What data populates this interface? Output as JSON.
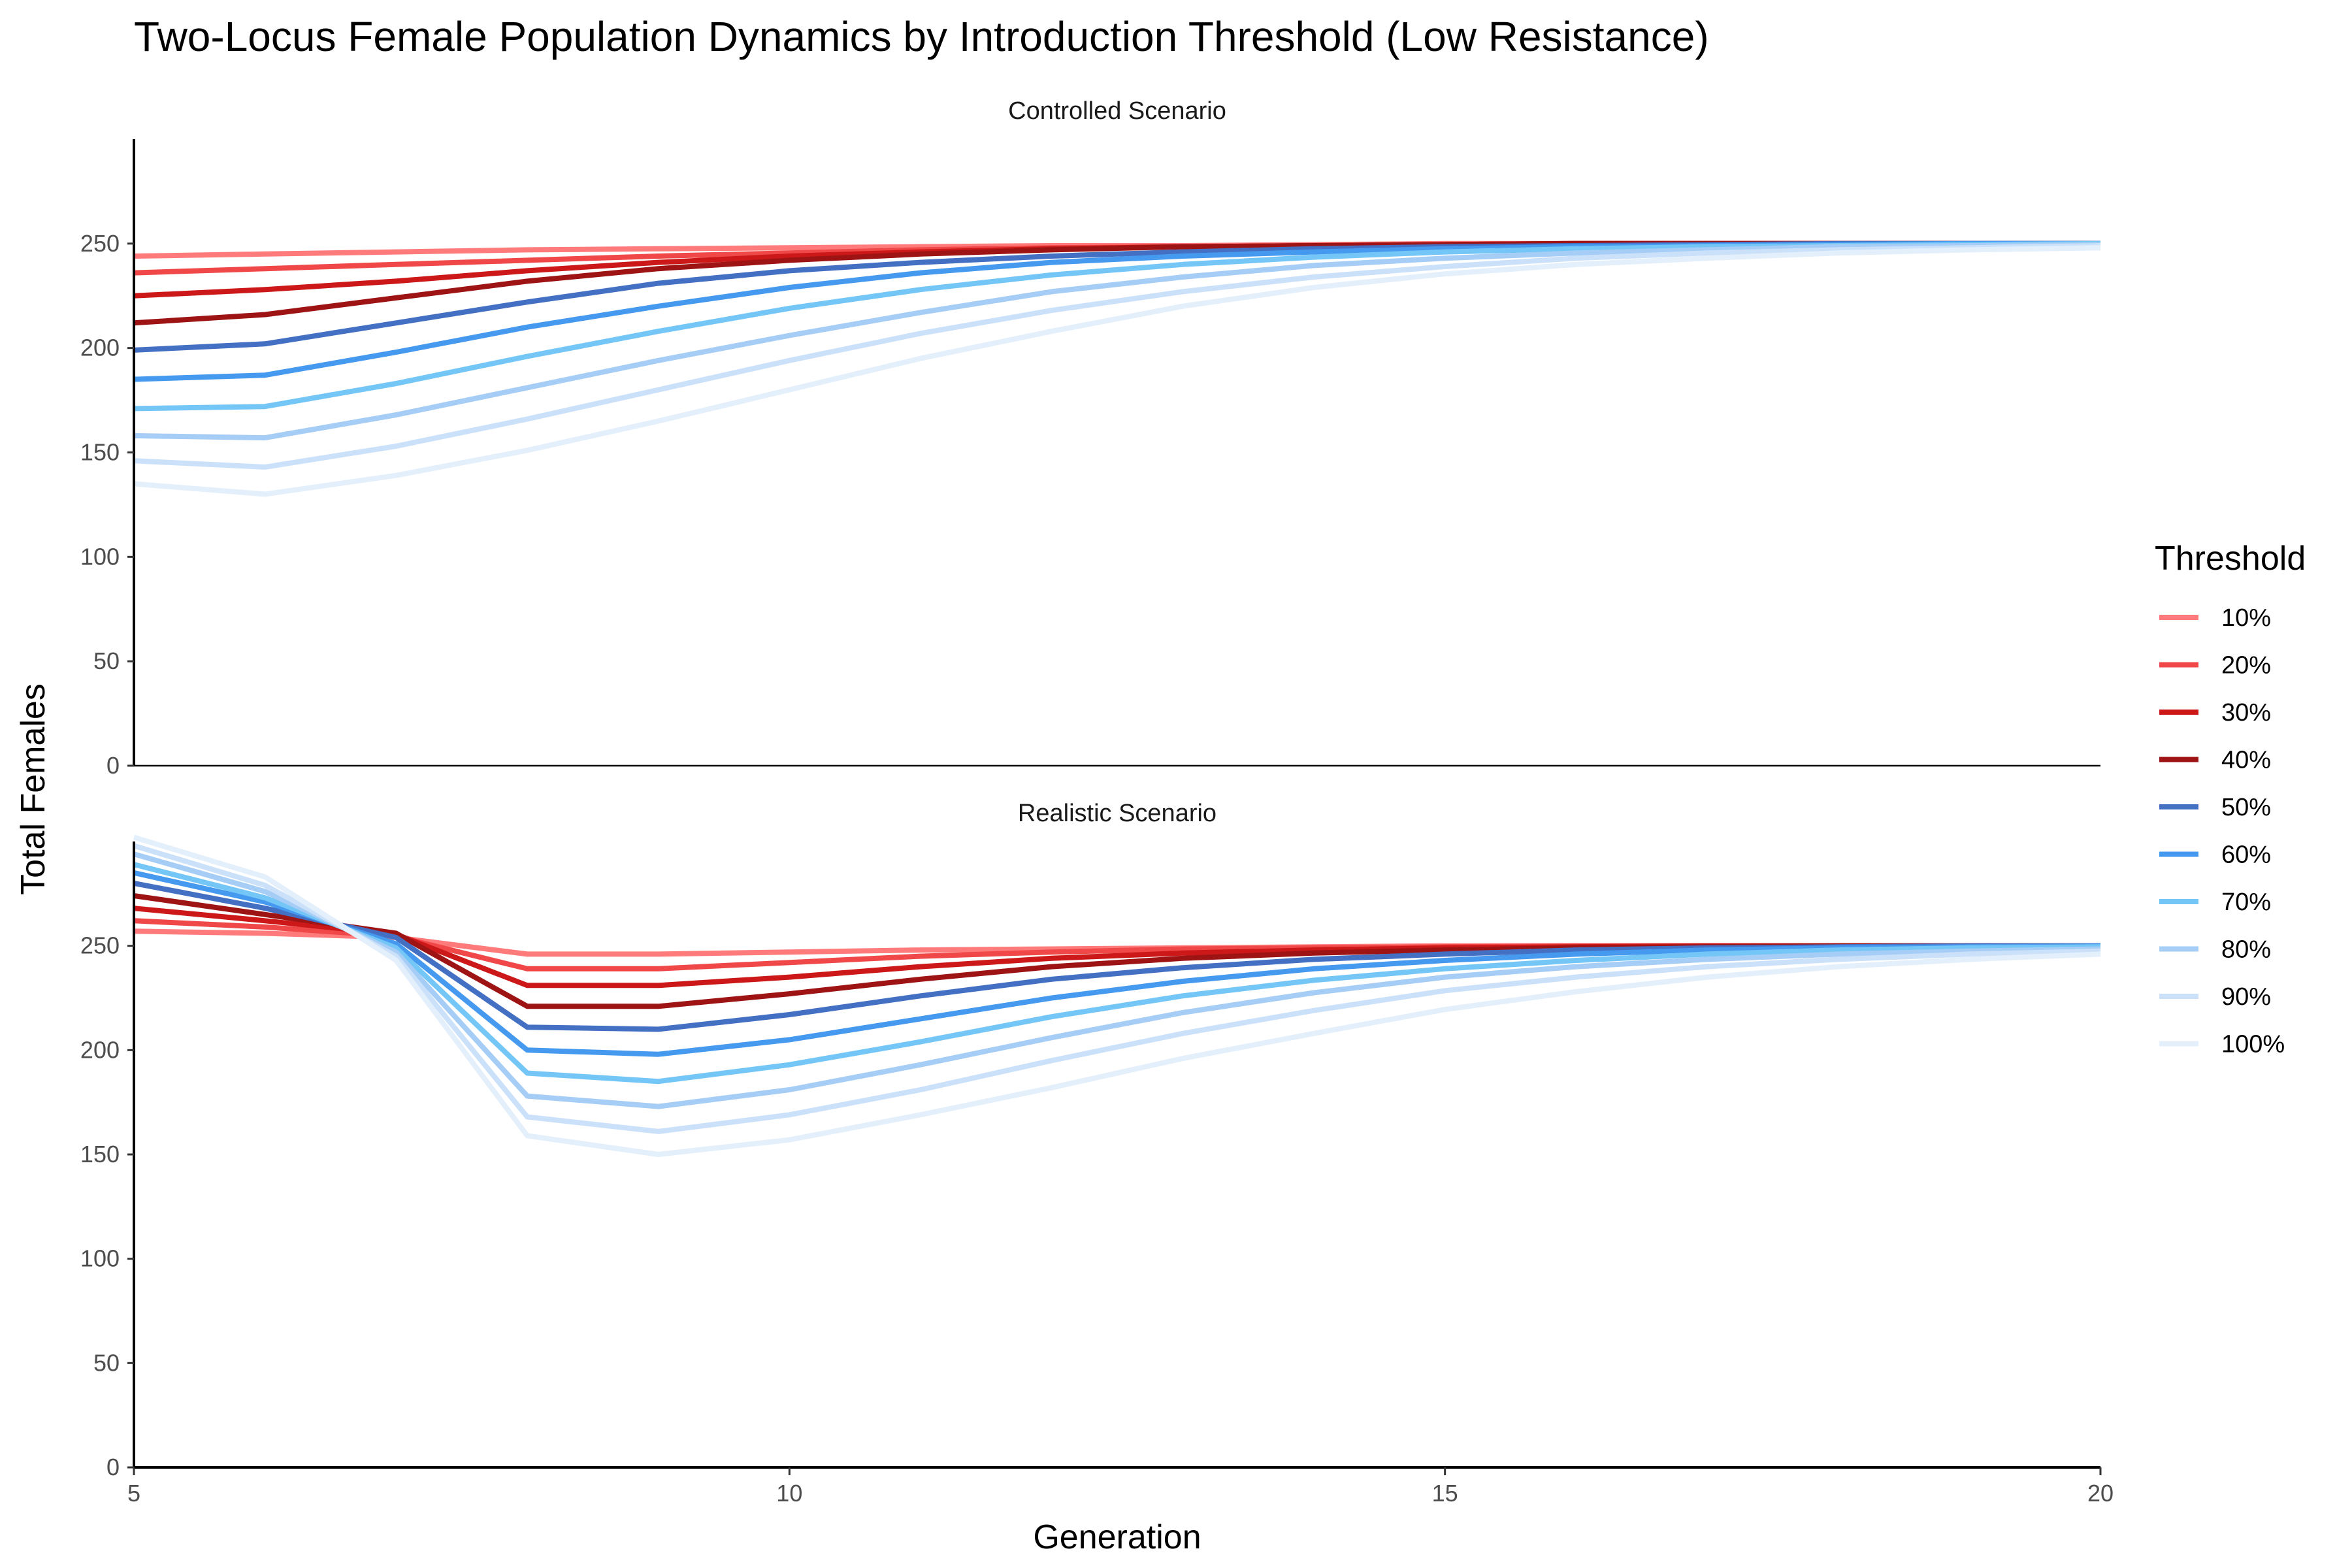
{
  "chart_data": {
    "type": "line",
    "title": "Two-Locus Female Population Dynamics by Introduction Threshold (Low Resistance)",
    "xlabel": "Generation",
    "ylabel": "Total Females",
    "xlim": [
      5,
      20
    ],
    "ylim": [
      0,
      300
    ],
    "x_ticks": [
      5,
      10,
      15,
      20
    ],
    "y_ticks": [
      0,
      50,
      100,
      150,
      200,
      250
    ],
    "legend": {
      "title": "Threshold",
      "placement": "right"
    },
    "x": [
      5,
      6,
      7,
      8,
      9,
      10,
      11,
      12,
      13,
      14,
      15,
      16,
      17,
      18,
      19,
      20
    ],
    "panels": [
      {
        "name": "Controlled Scenario",
        "series": [
          {
            "name": "10%",
            "color": "#ff7b7b",
            "values": [
              244,
              245,
              246,
              247,
              247.5,
              248,
              248.5,
              249,
              249,
              249.5,
              250,
              250,
              250,
              250,
              250,
              250
            ]
          },
          {
            "name": "20%",
            "color": "#f04848",
            "values": [
              236,
              238,
              240,
              242,
              244,
              245.5,
              247,
              248,
              248.5,
              249,
              249.5,
              250,
              250,
              250,
              250,
              250
            ]
          },
          {
            "name": "30%",
            "color": "#cc1818",
            "values": [
              225,
              228,
              232,
              237,
              241,
              244,
              246,
              247.5,
              248.5,
              249,
              249.5,
              250,
              250,
              250,
              250,
              250
            ]
          },
          {
            "name": "40%",
            "color": "#9e1414",
            "values": [
              212,
              216,
              224,
              232,
              238,
              242,
              245,
              247,
              248.5,
              249,
              249.5,
              250,
              250,
              250,
              250,
              250
            ]
          },
          {
            "name": "50%",
            "color": "#4470c4",
            "values": [
              199,
              202,
              212,
              222,
              231,
              237,
              241,
              244,
              246,
              247.5,
              248.5,
              249,
              249.5,
              250,
              250,
              250
            ]
          },
          {
            "name": "60%",
            "color": "#4599ee",
            "values": [
              185,
              187,
              198,
              210,
              220,
              229,
              236,
              241,
              244,
              246,
              247.5,
              248.5,
              249,
              249.5,
              250,
              250
            ]
          },
          {
            "name": "70%",
            "color": "#74c6f7",
            "values": [
              171,
              172,
              183,
              196,
              208,
              219,
              228,
              235,
              240,
              243.5,
              246,
              247.5,
              248.5,
              249,
              249.5,
              250
            ]
          },
          {
            "name": "80%",
            "color": "#a5cdf5",
            "values": [
              158,
              157,
              168,
              181,
              194,
              206,
              217,
              227,
              234,
              239.5,
              243,
              245.5,
              247,
              248.5,
              249,
              249.5
            ]
          },
          {
            "name": "90%",
            "color": "#cbe1fa",
            "values": [
              146,
              143,
              153,
              166,
              180,
              194,
              207,
              218,
              227,
              234,
              239,
              243,
              245.5,
              247,
              248,
              249
            ]
          },
          {
            "name": "100%",
            "color": "#e4effc",
            "values": [
              135,
              130,
              139,
              151,
              165,
              180,
              195,
              208,
              220,
              229,
              235.5,
              240,
              243,
              245.5,
              247,
              248
            ]
          }
        ]
      },
      {
        "name": "Realistic Scenario",
        "series": [
          {
            "name": "10%",
            "color": "#ff7b7b",
            "values": [
              257,
              256,
              254,
              246,
              246,
              247,
              248,
              248.5,
              249,
              249.5,
              250,
              250,
              250,
              250,
              250,
              250
            ]
          },
          {
            "name": "20%",
            "color": "#f04848",
            "values": [
              262,
              259,
              254.5,
              239,
              239,
              242,
              245,
              247,
              248.5,
              249,
              249.5,
              250,
              250,
              250,
              250,
              250
            ]
          },
          {
            "name": "30%",
            "color": "#cc1818",
            "values": [
              268,
              262,
              255.5,
              231,
              231,
              235,
              240,
              244,
              246.5,
              248,
              249,
              249.5,
              250,
              250,
              250,
              250
            ]
          },
          {
            "name": "40%",
            "color": "#9e1414",
            "values": [
              274,
              265,
              256,
              221,
              221,
              227,
              234,
              240,
              244,
              246.5,
              248,
              249,
              249.5,
              250,
              250,
              250
            ]
          },
          {
            "name": "50%",
            "color": "#4470c4",
            "values": [
              280,
              268,
              254,
              211,
              210,
              217,
              226,
              234,
              239.5,
              243.5,
              246,
              248,
              249,
              249.5,
              250,
              250
            ]
          },
          {
            "name": "60%",
            "color": "#4599ee",
            "values": [
              285,
              271,
              251,
              200,
              198,
              205,
              215,
              225,
              233,
              239,
              243,
              246,
              248,
              249,
              249.5,
              250
            ]
          },
          {
            "name": "70%",
            "color": "#74c6f7",
            "values": [
              289,
              273,
              249,
              189,
              185,
              193,
              204,
              216,
              226,
              233.5,
              239,
              243,
              246,
              248,
              249,
              249.5
            ]
          },
          {
            "name": "80%",
            "color": "#a5cdf5",
            "values": [
              294,
              276,
              247,
              178,
              173,
              181,
              193,
              206,
              218,
              227.5,
              235,
              240,
              243.5,
              246,
              247.5,
              248.5
            ]
          },
          {
            "name": "90%",
            "color": "#cbe1fa",
            "values": [
              298,
              279,
              245,
              168,
              161,
              169,
              181,
              195,
              208,
              219,
              228.5,
              235,
              240,
              243.5,
              246,
              247.5
            ]
          },
          {
            "name": "100%",
            "color": "#e4effc",
            "values": [
              302,
              283,
              243,
              159,
              150,
              157,
              169,
              182,
              196,
              208,
              219.5,
              228,
              235,
              240,
              243.5,
              246
            ]
          }
        ]
      }
    ]
  }
}
